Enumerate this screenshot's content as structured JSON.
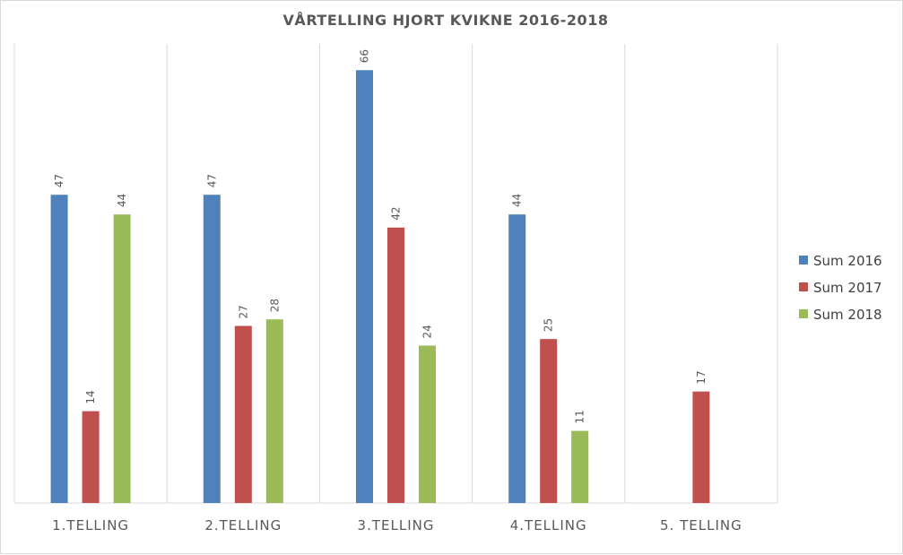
{
  "chart_data": {
    "type": "bar",
    "title": "VÅRTELLING HJORT KVIKNE 2016-2018",
    "categories": [
      "1.TELLING",
      "2.TELLING",
      "3.TELLING",
      "4.TELLING",
      "5. TELLING"
    ],
    "series": [
      {
        "name": "Sum 2016",
        "color": "#4F81BD",
        "values": [
          47,
          47,
          66,
          44,
          null
        ]
      },
      {
        "name": "Sum 2017",
        "color": "#C0504D",
        "values": [
          14,
          27,
          42,
          25,
          17
        ]
      },
      {
        "name": "Sum 2018",
        "color": "#9BBB59",
        "values": [
          44,
          28,
          24,
          11,
          null
        ]
      }
    ],
    "data_labels": true,
    "data_label_orientation": "vertical",
    "ylim": [
      0,
      70
    ],
    "y_axis_visible": false,
    "grid": "vertical category separators",
    "legend_position": "right"
  }
}
